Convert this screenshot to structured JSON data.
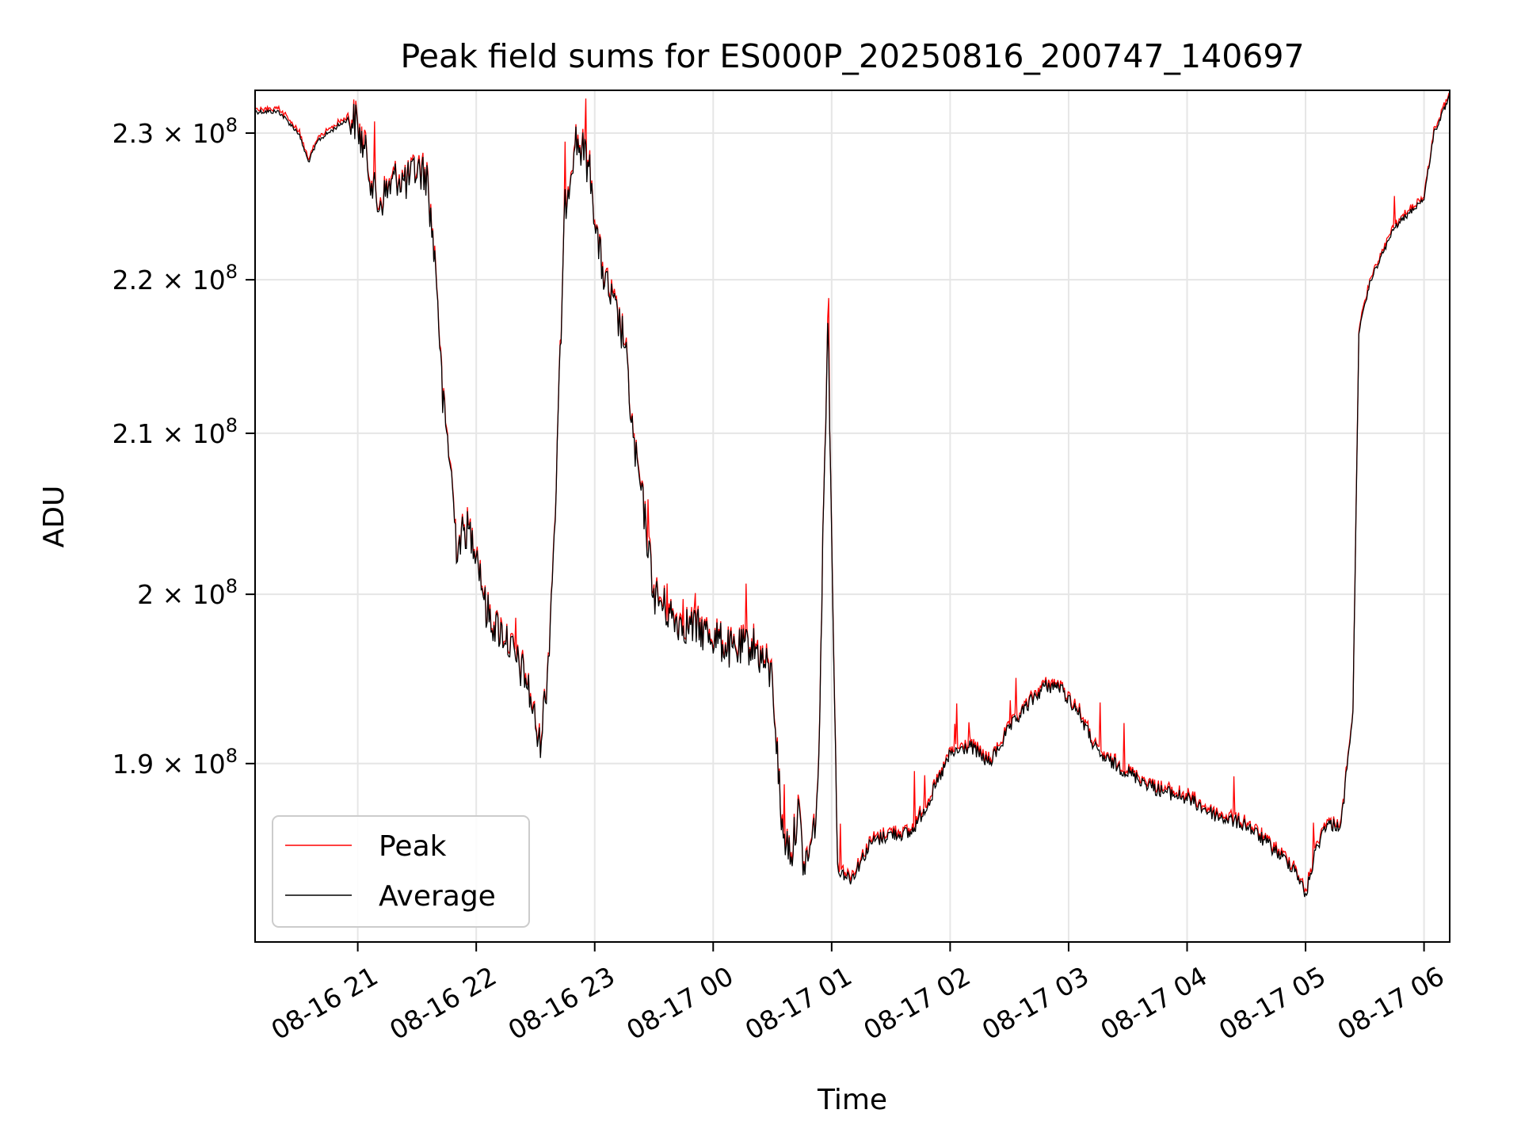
{
  "chart_data": {
    "type": "line",
    "title": "Peak field sums for ES000P_20250816_200747_140697",
    "xlabel": "Time",
    "ylabel": "ADU",
    "x_ticks": [
      "08-16 21",
      "08-16 22",
      "08-16 23",
      "08-17 00",
      "08-17 01",
      "08-17 02",
      "08-17 03",
      "08-17 04",
      "08-17 05",
      "08-17 06"
    ],
    "y_ticks": [
      {
        "value": 190000000,
        "base": "1.9 × 10",
        "exp": "8"
      },
      {
        "value": 200000000,
        "base": "2 × 10",
        "exp": "8"
      },
      {
        "value": 210000000,
        "base": "2.1 × 10",
        "exp": "8"
      },
      {
        "value": 220000000,
        "base": "2.2 × 10",
        "exp": "8"
      },
      {
        "value": 230000000,
        "base": "2.3 × 10",
        "exp": "8"
      }
    ],
    "xlim": [
      "2025-08-16T20:08",
      "2025-08-17T06:13"
    ],
    "ylim": [
      180000000,
      233000000
    ],
    "yscale": "log",
    "grid": true,
    "legend_position": "lower-left",
    "legend": [
      "Peak",
      "Average"
    ],
    "series": [
      {
        "name": "Peak",
        "color": "#ff0000"
      },
      {
        "name": "Average",
        "color": "#000000",
        "x": [
          "2025-08-16T20:08",
          "2025-08-16T20:20",
          "2025-08-16T20:30",
          "2025-08-16T20:35",
          "2025-08-16T20:40",
          "2025-08-16T20:45",
          "2025-08-16T20:50",
          "2025-08-16T20:55",
          "2025-08-16T20:59",
          "2025-08-16T21:05",
          "2025-08-16T21:10",
          "2025-08-16T21:15",
          "2025-08-16T21:20",
          "2025-08-16T21:25",
          "2025-08-16T21:30",
          "2025-08-16T21:35",
          "2025-08-16T21:40",
          "2025-08-16T21:43",
          "2025-08-16T21:47",
          "2025-08-16T21:50",
          "2025-08-16T21:55",
          "2025-08-16T22:00",
          "2025-08-16T22:05",
          "2025-08-16T22:10",
          "2025-08-16T22:15",
          "2025-08-16T22:20",
          "2025-08-16T22:25",
          "2025-08-16T22:28",
          "2025-08-16T22:32",
          "2025-08-16T22:36",
          "2025-08-16T22:40",
          "2025-08-16T22:45",
          "2025-08-16T22:50",
          "2025-08-16T22:55",
          "2025-08-16T22:58",
          "2025-08-16T23:02",
          "2025-08-16T23:05",
          "2025-08-16T23:10",
          "2025-08-16T23:15",
          "2025-08-16T23:20",
          "2025-08-16T23:25",
          "2025-08-16T23:30",
          "2025-08-16T23:40",
          "2025-08-16T23:50",
          "2025-08-17T00:00",
          "2025-08-17T00:10",
          "2025-08-17T00:20",
          "2025-08-17T00:25",
          "2025-08-17T00:30",
          "2025-08-17T00:35",
          "2025-08-17T00:40",
          "2025-08-17T00:43",
          "2025-08-17T00:46",
          "2025-08-17T00:50",
          "2025-08-17T00:53",
          "2025-08-17T00:58",
          "2025-08-17T01:03",
          "2025-08-17T01:10",
          "2025-08-17T01:20",
          "2025-08-17T01:30",
          "2025-08-17T01:40",
          "2025-08-17T01:50",
          "2025-08-17T02:00",
          "2025-08-17T02:10",
          "2025-08-17T02:20",
          "2025-08-17T02:30",
          "2025-08-17T02:40",
          "2025-08-17T02:48",
          "2025-08-17T02:55",
          "2025-08-17T03:05",
          "2025-08-17T03:15",
          "2025-08-17T03:30",
          "2025-08-17T03:45",
          "2025-08-17T04:00",
          "2025-08-17T04:15",
          "2025-08-17T04:30",
          "2025-08-17T04:45",
          "2025-08-17T04:55",
          "2025-08-17T05:00",
          "2025-08-17T05:05",
          "2025-08-17T05:10",
          "2025-08-17T05:18",
          "2025-08-17T05:24",
          "2025-08-17T05:27",
          "2025-08-17T05:33",
          "2025-08-17T05:45",
          "2025-08-17T06:00",
          "2025-08-17T06:05",
          "2025-08-17T06:13"
        ],
        "y": [
          231500000,
          231500000,
          230000000,
          228000000,
          229500000,
          230000000,
          230500000,
          231000000,
          230800000,
          228000000,
          225000000,
          226000000,
          227000000,
          226500000,
          227500000,
          227000000,
          220000000,
          212000000,
          208000000,
          203000000,
          204000000,
          203000000,
          199000000,
          198000000,
          197500000,
          196000000,
          195000000,
          193500000,
          191000000,
          195000000,
          205000000,
          225000000,
          229500000,
          228500000,
          227000000,
          222000000,
          220000000,
          218000000,
          216000000,
          209000000,
          205000000,
          200000000,
          198500000,
          198000000,
          197500000,
          196500000,
          197000000,
          196000000,
          195000000,
          186000000,
          185000000,
          187500000,
          184000000,
          185500000,
          188000000,
          218000000,
          184000000,
          183500000,
          185500000,
          186000000,
          186000000,
          188000000,
          190500000,
          191000000,
          190000000,
          192000000,
          193500000,
          194500000,
          194500000,
          193000000,
          190500000,
          189500000,
          188500000,
          188000000,
          187000000,
          186500000,
          185000000,
          184000000,
          182500000,
          185000000,
          186500000,
          186500000,
          193000000,
          216500000,
          220000000,
          223500000,
          225500000,
          230000000,
          232500000
        ]
      }
    ]
  }
}
